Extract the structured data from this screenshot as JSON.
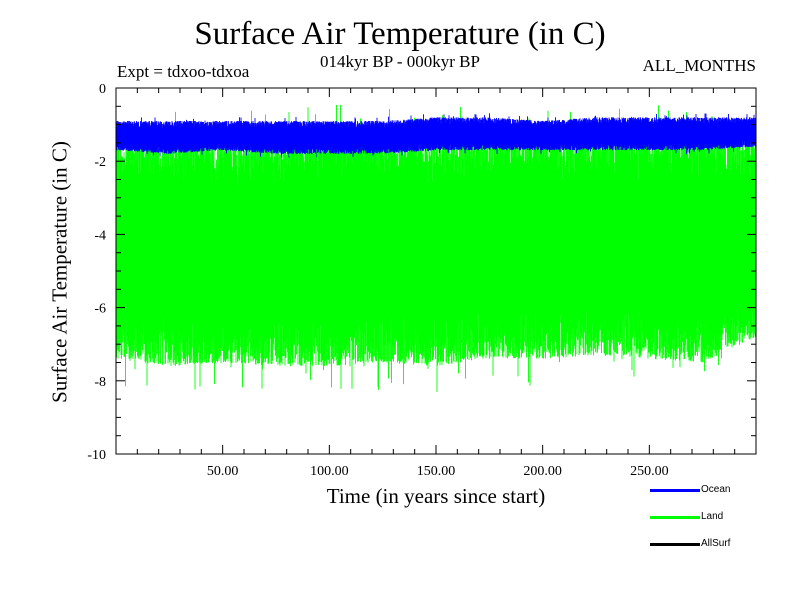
{
  "chart_data": {
    "type": "line",
    "title": "Surface Air Temperature (in C)",
    "subtitle": "014kyr BP - 000kyr BP",
    "experiment": "Expt = tdxoo-tdxoa",
    "season": "ALL_MONTHS",
    "xlabel": "Time (in years since start)",
    "ylabel": "Surface Air Temperature (in C)",
    "xlim": [
      0,
      300
    ],
    "ylim": [
      -10,
      0
    ],
    "x_ticks": [
      50,
      100,
      150,
      200,
      250
    ],
    "x_tick_labels": [
      "50.00",
      "100.00",
      "150.00",
      "200.00",
      "250.00"
    ],
    "y_ticks": [
      0,
      -2,
      -4,
      -6,
      -8,
      -10
    ],
    "y_tick_labels": [
      "0",
      "-2",
      "-4",
      "-6",
      "-8",
      "-10"
    ],
    "legend_position": "bottom-right outside",
    "grid": false,
    "series": [
      {
        "name": "Land",
        "color": "#00ff00",
        "style": "dense oscillation",
        "x": [
          0,
          25,
          50,
          75,
          100,
          125,
          150,
          175,
          200,
          225,
          250,
          275,
          300
        ],
        "y_max": [
          -1.5,
          -1.3,
          -1.3,
          -1.4,
          -1.2,
          -1.3,
          -1.3,
          -1.2,
          -1.3,
          -1.3,
          -1.2,
          -1.3,
          -1.2
        ],
        "y_min": [
          -7.4,
          -7.6,
          -7.5,
          -7.6,
          -7.6,
          -7.5,
          -7.6,
          -7.4,
          -7.4,
          -7.3,
          -7.4,
          -7.5,
          -6.8
        ]
      },
      {
        "name": "Ocean",
        "color": "#0000ff",
        "style": "dense oscillation",
        "x": [
          0,
          25,
          50,
          75,
          100,
          125,
          150,
          175,
          200,
          225,
          250,
          275,
          300
        ],
        "y_max": [
          -0.9,
          -0.9,
          -0.9,
          -0.9,
          -0.9,
          -0.9,
          -0.8,
          -0.8,
          -0.9,
          -0.8,
          -0.8,
          -0.8,
          -0.8
        ],
        "y_min": [
          -1.7,
          -1.8,
          -1.7,
          -1.8,
          -1.8,
          -1.8,
          -1.7,
          -1.7,
          -1.7,
          -1.7,
          -1.7,
          -1.7,
          -1.6
        ]
      },
      {
        "name": "AllSurf",
        "color": "#000000",
        "style": "line",
        "x": [],
        "y": []
      }
    ]
  }
}
